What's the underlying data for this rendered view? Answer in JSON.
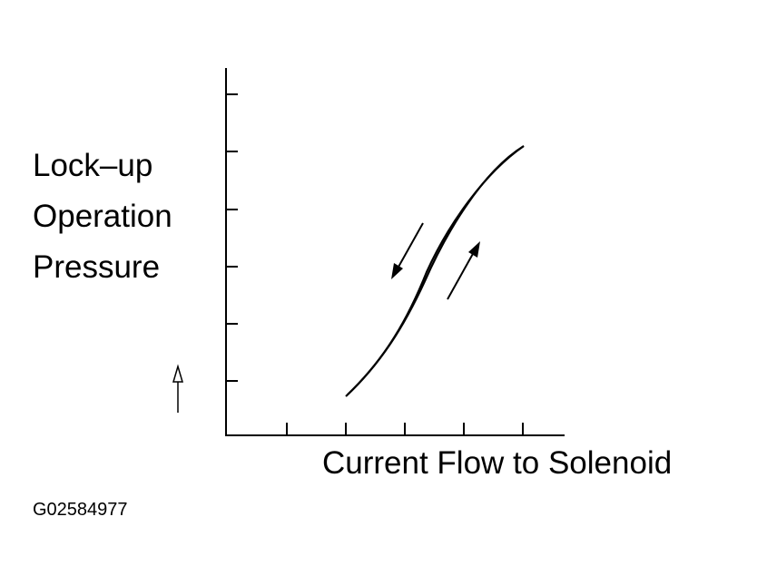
{
  "y_axis_label": [
    "Lock–up",
    "Operation",
    "Pressure"
  ],
  "x_axis_label": "Current Flow to Solenoid",
  "figure_id": "G02584977"
}
